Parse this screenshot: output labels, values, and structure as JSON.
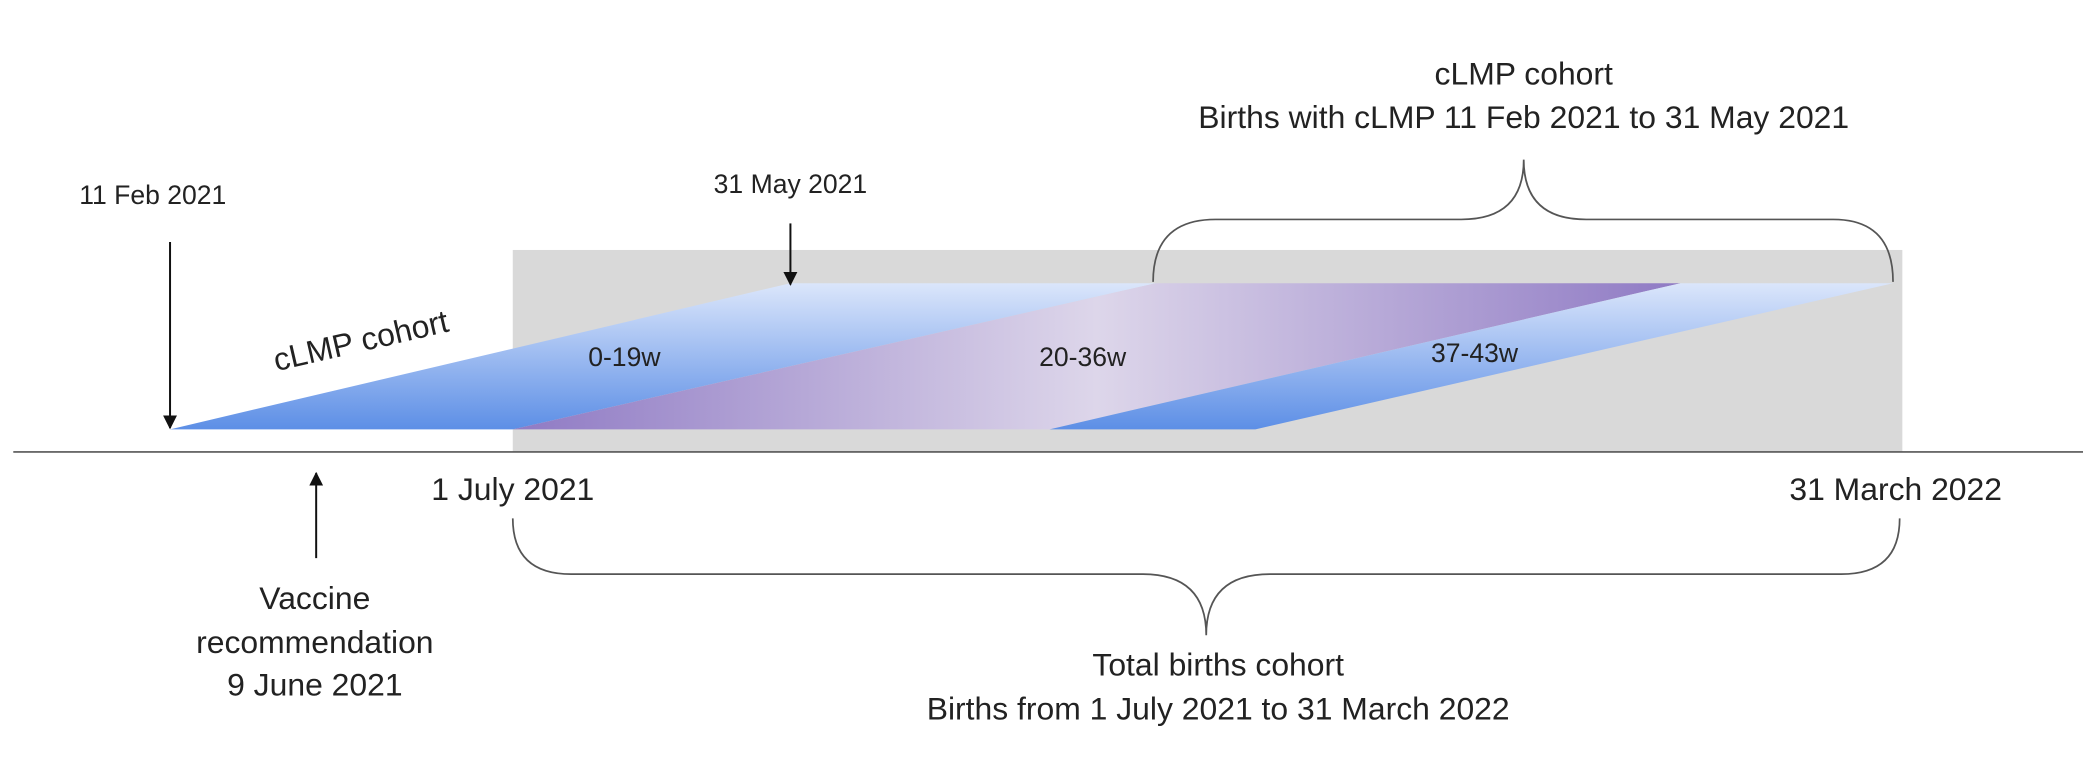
{
  "dates": {
    "start": "11 Feb 2021",
    "end_lmp": "31 May 2021",
    "births_start": "1 July 2021",
    "births_end": "31 March 2022"
  },
  "cohort_label": "cLMP cohort",
  "stages": [
    "0-19w",
    "20-36w",
    "37-43w"
  ],
  "clmp_brace": {
    "title": "cLMP cohort",
    "subtitle": "Births with cLMP 11 Feb 2021 to 31 May 2021"
  },
  "vaccine": {
    "lines": [
      "Vaccine",
      "recommendation",
      "9 June 2021"
    ]
  },
  "total_brace": {
    "title": "Total births cohort",
    "subtitle": "Births from 1 July 2021 to 31 March 2022"
  }
}
